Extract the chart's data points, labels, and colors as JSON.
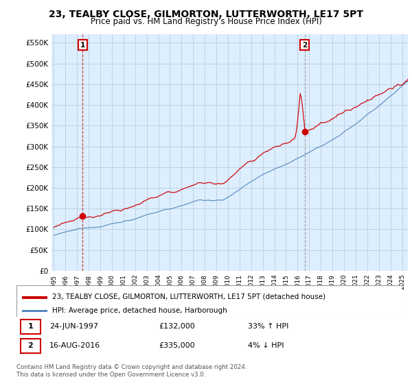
{
  "title": "23, TEALBY CLOSE, GILMORTON, LUTTERWORTH, LE17 5PT",
  "subtitle": "Price paid vs. HM Land Registry's House Price Index (HPI)",
  "ylabel_ticks": [
    "£0",
    "£50K",
    "£100K",
    "£150K",
    "£200K",
    "£250K",
    "£300K",
    "£350K",
    "£400K",
    "£450K",
    "£500K",
    "£550K"
  ],
  "ytick_vals": [
    0,
    50000,
    100000,
    150000,
    200000,
    250000,
    300000,
    350000,
    400000,
    450000,
    500000,
    550000
  ],
  "ylim": [
    0,
    570000
  ],
  "xlim_start": 1994.8,
  "xlim_end": 2025.5,
  "transaction1": {
    "date": "24-JUN-1997",
    "price": 132000,
    "year": 1997.48,
    "label": "1",
    "hpi_pct": "33% ↑ HPI"
  },
  "transaction2": {
    "date": "16-AUG-2016",
    "price": 335000,
    "year": 2016.62,
    "label": "2",
    "hpi_pct": "4% ↓ HPI"
  },
  "legend_line1": "23, TEALBY CLOSE, GILMORTON, LUTTERWORTH, LE17 5PT (detached house)",
  "legend_line2": "HPI: Average price, detached house, Harborough",
  "footer1": "Contains HM Land Registry data © Crown copyright and database right 2024.",
  "footer2": "This data is licensed under the Open Government Licence v3.0.",
  "red_color": "#cc0000",
  "blue_color": "#5588bb",
  "dashed_color1": "#cc0000",
  "dashed_color2": "#888888",
  "bg_color": "#ffffff",
  "chart_bg_color": "#ddeeff",
  "grid_color": "#bbccdd",
  "title_fontsize": 10,
  "subtitle_fontsize": 8.5
}
